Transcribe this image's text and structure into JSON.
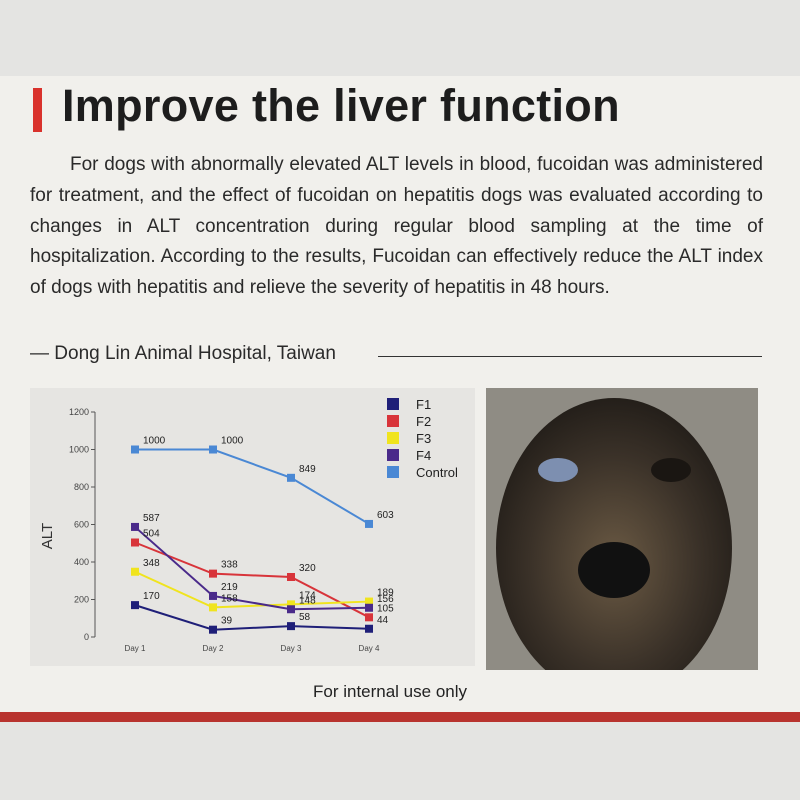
{
  "header": {
    "title": "Improve the liver function"
  },
  "body": {
    "paragraph": "For dogs with abnormally elevated ALT levels in blood, fucoidan was administered for treatment, and the effect of fucoidan on hepatitis dogs was evaluated according to changes in ALT concentration during regular blood sampling at the time of hospitalization. According to the results, Fucoidan can effectively reduce the ALT index of dogs with hepatitis and relieve the severity of hepatitis in 48 hours.",
    "attribution": "— Dong Lin Animal Hospital, Taiwan"
  },
  "chart_data": {
    "type": "line",
    "y_label": "ALT",
    "categories": [
      "Day 1",
      "Day 2",
      "Day 3",
      "Day 4"
    ],
    "series": [
      {
        "name": "F1",
        "color": "#1f1f78",
        "values": [
          170,
          39,
          58,
          44
        ]
      },
      {
        "name": "F2",
        "color": "#d8343a",
        "values": [
          504,
          338,
          320,
          105
        ]
      },
      {
        "name": "F3",
        "color": "#f0e41e",
        "values": [
          348,
          158,
          174,
          189
        ]
      },
      {
        "name": "F4",
        "color": "#4a2a8a",
        "values": [
          587,
          219,
          148,
          156
        ]
      },
      {
        "name": "Control",
        "color": "#4a88d4",
        "values": [
          1000,
          1000,
          849,
          603
        ]
      }
    ],
    "ylim": [
      0,
      1200
    ],
    "yticks": [
      0,
      200,
      400,
      600,
      800,
      1000,
      1200
    ],
    "legend": "top-right"
  },
  "footer": {
    "note": "For internal use only"
  }
}
